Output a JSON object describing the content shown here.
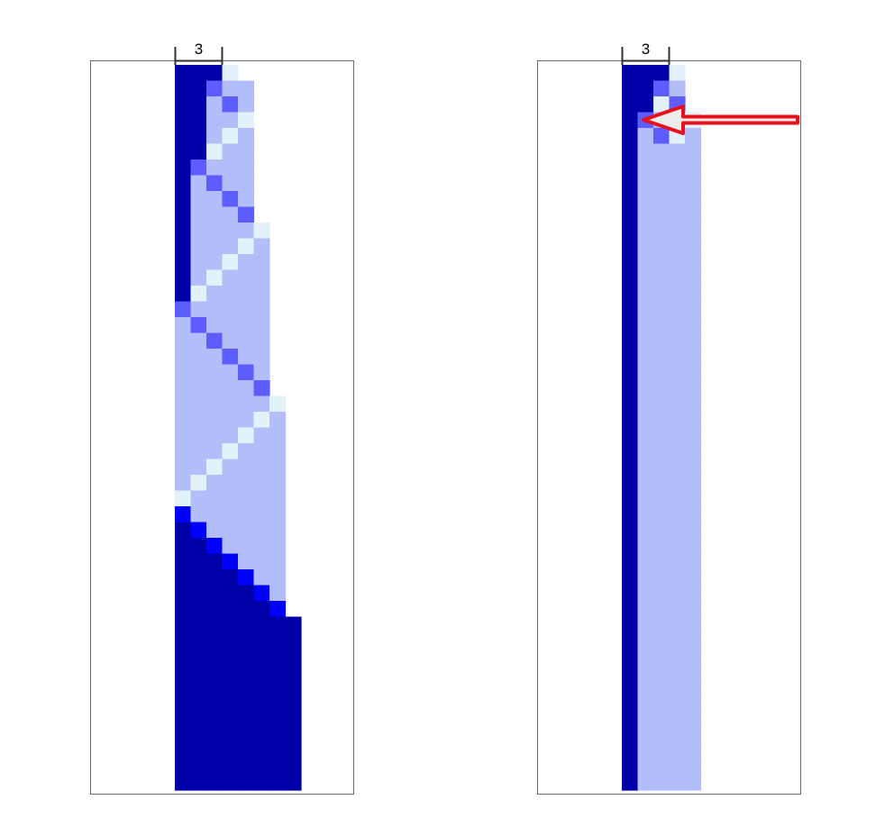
{
  "colors": {
    "background": "#ffffff",
    "frame": "#666666",
    "dark": "#0000a8",
    "medium": "#5c5cff",
    "light": "#b3bdfa",
    "pale": "#e3f2fa",
    "bright": "#0000ff",
    "arrow_stroke": "#e8101a",
    "arrow_fill": "#ececec"
  },
  "panels": [
    {
      "id": "left",
      "bracket_label": "3"
    },
    {
      "id": "right",
      "bracket_label": "3"
    }
  ],
  "left_grid": {
    "rows": 46,
    "width_stages": [
      {
        "from_row": 0,
        "to_row": 9,
        "cols": 5
      },
      {
        "from_row": 10,
        "to_row": 20,
        "cols": 6
      },
      {
        "from_row": 21,
        "to_row": 34,
        "cols": 7
      },
      {
        "from_row": 35,
        "to_row": 45,
        "cols": 8
      }
    ],
    "segments": [
      {
        "dark_end": 15,
        "diagonal": [
          0,
          2,
          3,
          4,
          5,
          6,
          7,
          8,
          9,
          10,
          11,
          12,
          13,
          14,
          15,
          16
        ]
      },
      {
        "dark_end": 20,
        "diagonal": [
          16,
          17,
          18,
          19,
          20,
          21,
          22,
          23,
          24,
          25,
          26,
          27,
          28,
          29,
          30,
          31
        ]
      },
      {
        "dark_end": 34,
        "diagonal": [
          31,
          32,
          33,
          34
        ]
      },
      {
        "dark_end": 46,
        "diagonal": [
          34,
          35,
          36,
          37,
          38,
          39,
          40,
          41,
          42,
          43,
          44,
          45
        ]
      }
    ]
  },
  "right_grid": {
    "rows": 46,
    "cols": 5,
    "rows_shown": [
      0,
      1,
      2,
      3,
      4
    ]
  },
  "arrow": {
    "direction": "left"
  }
}
